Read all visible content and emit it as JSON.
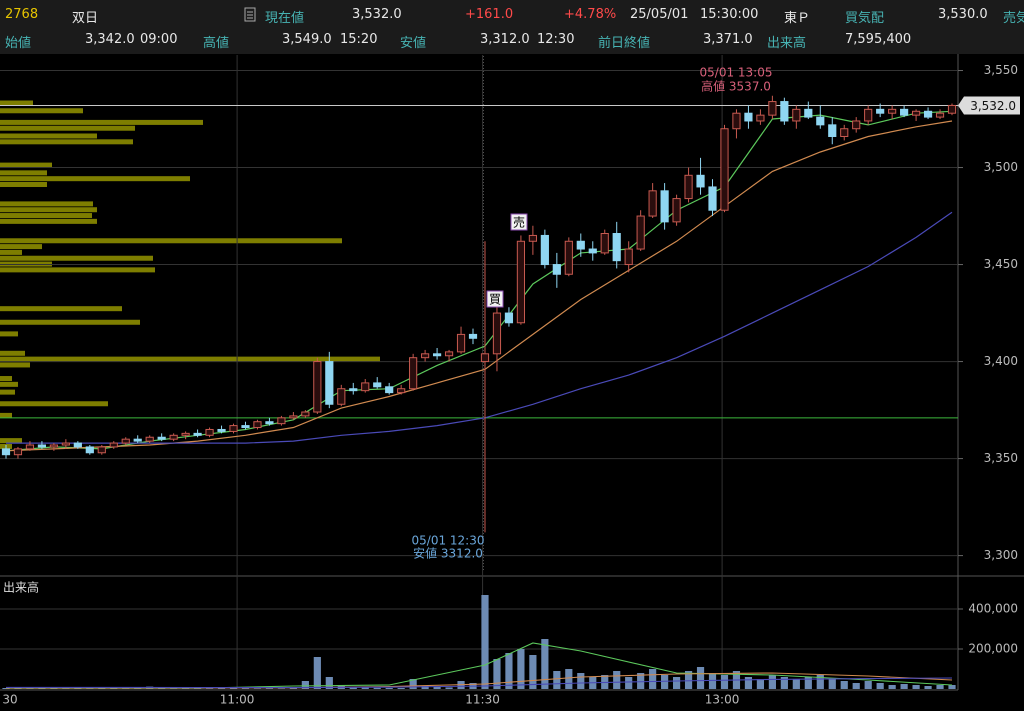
{
  "header": {
    "code": "2768",
    "name": "双日",
    "price_label": "現在値",
    "price": "3,532.0",
    "change": "+161.0",
    "change_pct": "+4.78%",
    "date": "25/05/01",
    "time": "15:30:00",
    "market": "東Ｐ",
    "bid_label": "買気配",
    "bid": "3,530.0",
    "ask_label": "売気",
    "open_label": "始値",
    "open": "3,342.0",
    "open_time": "09:00",
    "high_label": "高値",
    "high": "3,549.0",
    "high_time": "15:20",
    "low_label": "安値",
    "low": "3,312.0",
    "low_time": "12:30",
    "prev_close_label": "前日終値",
    "prev_close": "3,371.0",
    "volume_label": "出来高",
    "volume": "7,595,400"
  },
  "chart_data": [
    {
      "type": "candlestick",
      "up_color": "#c85a50",
      "down_color": "#8fd6f2",
      "x": [
        0,
        1,
        2,
        3,
        4,
        5,
        6,
        7,
        8,
        9,
        10,
        11,
        12,
        13,
        14,
        15,
        16,
        17,
        18,
        19,
        20,
        21,
        22,
        23,
        24,
        25,
        26,
        27,
        28,
        29,
        30,
        31,
        32,
        33,
        34,
        35,
        36,
        37,
        38,
        39,
        40,
        41,
        42,
        43,
        44,
        45,
        46,
        47,
        48,
        49,
        50,
        51,
        52,
        53,
        54,
        55,
        56,
        57,
        58,
        59,
        60,
        61,
        62,
        63,
        64,
        65,
        66,
        67,
        68,
        69,
        70,
        71,
        72,
        73,
        74,
        75,
        76,
        77,
        78,
        79
      ],
      "open": [
        3355,
        3352,
        3355,
        3357,
        3356,
        3357,
        3358,
        3356,
        3353,
        3356,
        3358,
        3360,
        3359,
        3361,
        3360,
        3362,
        3363,
        3362,
        3365,
        3364,
        3367,
        3366,
        3369,
        3368,
        3371,
        3372,
        3374,
        3400,
        3378,
        3386,
        3385,
        3389,
        3387,
        3384,
        3386,
        3402,
        3404,
        3403,
        3405,
        3414,
        3400,
        3404,
        3425,
        3420,
        3462,
        3465,
        3450,
        3445,
        3462,
        3458,
        3456,
        3466,
        3450,
        3458,
        3475,
        3488,
        3472,
        3484,
        3496,
        3490,
        3478,
        3520,
        3528,
        3524,
        3527,
        3534,
        3524,
        3530,
        3526,
        3522,
        3516,
        3520,
        3524,
        3530,
        3528,
        3530,
        3527,
        3529,
        3526,
        3528
      ],
      "high": [
        3357,
        3356,
        3359,
        3359,
        3358,
        3360,
        3359,
        3357,
        3357,
        3359,
        3361,
        3362,
        3362,
        3363,
        3363,
        3364,
        3365,
        3366,
        3367,
        3368,
        3369,
        3370,
        3371,
        3372,
        3374,
        3375,
        3402,
        3405,
        3388,
        3389,
        3391,
        3392,
        3389,
        3388,
        3404,
        3406,
        3407,
        3406,
        3418,
        3417,
        3462,
        3428,
        3428,
        3465,
        3470,
        3468,
        3456,
        3464,
        3466,
        3462,
        3468,
        3472,
        3462,
        3478,
        3492,
        3492,
        3486,
        3500,
        3505,
        3494,
        3522,
        3530,
        3532,
        3530,
        3537,
        3536,
        3532,
        3534,
        3532,
        3526,
        3522,
        3526,
        3532,
        3533,
        3532,
        3532,
        3530,
        3531,
        3530,
        3533
      ],
      "low": [
        3350,
        3350,
        3354,
        3355,
        3354,
        3355,
        3355,
        3352,
        3352,
        3355,
        3357,
        3358,
        3358,
        3359,
        3359,
        3360,
        3361,
        3361,
        3363,
        3363,
        3365,
        3365,
        3367,
        3367,
        3370,
        3371,
        3373,
        3376,
        3377,
        3383,
        3384,
        3386,
        3383,
        3383,
        3385,
        3400,
        3401,
        3400,
        3404,
        3409,
        3312,
        3395,
        3418,
        3419,
        3455,
        3448,
        3438,
        3444,
        3454,
        3452,
        3455,
        3448,
        3446,
        3457,
        3474,
        3468,
        3470,
        3482,
        3486,
        3475,
        3477,
        3515,
        3520,
        3522,
        3525,
        3522,
        3520,
        3525,
        3520,
        3512,
        3514,
        3518,
        3522,
        3526,
        3525,
        3526,
        3524,
        3525,
        3525,
        3527
      ],
      "close": [
        3352,
        3355,
        3357,
        3356,
        3357,
        3358,
        3356,
        3353,
        3356,
        3358,
        3360,
        3359,
        3361,
        3360,
        3362,
        3363,
        3362,
        3365,
        3364,
        3367,
        3366,
        3369,
        3368,
        3371,
        3372,
        3374,
        3400,
        3378,
        3386,
        3385,
        3389,
        3387,
        3384,
        3386,
        3402,
        3404,
        3403,
        3405,
        3414,
        3412,
        3404,
        3425,
        3420,
        3462,
        3465,
        3450,
        3445,
        3462,
        3458,
        3456,
        3466,
        3452,
        3458,
        3475,
        3488,
        3472,
        3484,
        3496,
        3490,
        3478,
        3520,
        3528,
        3524,
        3527,
        3534,
        3524,
        3530,
        3526,
        3522,
        3516,
        3520,
        3524,
        3530,
        3528,
        3530,
        3527,
        3529,
        3526,
        3528,
        3532
      ],
      "series": [
        {
          "color": "#5cc85c",
          "x": [
            0,
            4,
            8,
            12,
            16,
            20,
            24,
            28,
            32,
            36,
            40,
            44,
            48,
            52,
            56,
            60,
            64,
            68,
            72,
            76,
            79
          ],
          "values": [
            3354,
            3356,
            3355,
            3359,
            3362,
            3365,
            3370,
            3385,
            3386,
            3398,
            3408,
            3440,
            3456,
            3458,
            3478,
            3490,
            3525,
            3527,
            3522,
            3528,
            3529
          ]
        },
        {
          "color": "#d08a50",
          "x": [
            0,
            4,
            8,
            12,
            16,
            20,
            24,
            28,
            32,
            36,
            40,
            44,
            48,
            52,
            56,
            60,
            64,
            68,
            72,
            76,
            79
          ],
          "values": [
            3354,
            3355,
            3356,
            3357,
            3359,
            3362,
            3366,
            3376,
            3382,
            3389,
            3396,
            3414,
            3432,
            3447,
            3462,
            3480,
            3498,
            3508,
            3516,
            3521,
            3524
          ]
        },
        {
          "color": "#4a4ab8",
          "x": [
            0,
            4,
            8,
            12,
            16,
            20,
            24,
            28,
            32,
            36,
            40,
            44,
            48,
            52,
            56,
            60,
            64,
            68,
            72,
            76,
            79
          ],
          "values": [
            3358,
            3358,
            3358,
            3358,
            3358,
            3358,
            3359,
            3362,
            3364,
            3367,
            3371,
            3378,
            3386,
            3393,
            3402,
            3413,
            3425,
            3437,
            3449,
            3464,
            3477
          ]
        }
      ],
      "xlim": [
        -0.5,
        79.5
      ],
      "ylim": [
        3290,
        3558
      ],
      "xticks": [
        {
          "value": -0.3,
          "label": "30"
        },
        {
          "value": 19.3,
          "label": "11:00"
        },
        {
          "value": 39.8,
          "label": "11:30"
        },
        {
          "value": 59.8,
          "label": "13:00"
        }
      ],
      "yticks": [
        {
          "value": 3300,
          "label": "3,300"
        },
        {
          "value": 3350,
          "label": "3,350"
        },
        {
          "value": 3400,
          "label": "3,400"
        },
        {
          "value": 3450,
          "label": "3,450"
        },
        {
          "value": 3500,
          "label": "3,500"
        },
        {
          "value": 3550,
          "label": "3,550"
        }
      ],
      "grid": true,
      "current_price": {
        "value": 3532,
        "label": "3,532.0"
      },
      "prev_close_line": {
        "value": 3371,
        "color": "#3cb83c"
      },
      "volume_profile": {
        "color": "#8c8c00",
        "xlim": [
          0,
          958
        ],
        "prices": [
          3533,
          3529,
          3523,
          3520,
          3516,
          3513,
          3501,
          3497,
          3494,
          3491,
          3481,
          3478,
          3475,
          3472,
          3462,
          3459,
          3456,
          3453,
          3450,
          3447,
          3427,
          3420,
          3414,
          3404,
          3401,
          3398,
          3391,
          3388,
          3384,
          3378,
          3372,
          3359,
          3356
        ],
        "values": [
          33,
          83,
          203,
          135,
          97,
          133,
          52,
          47,
          190,
          47,
          93,
          97,
          92,
          97,
          342,
          42,
          22,
          153,
          52,
          155,
          122,
          140,
          18,
          25,
          380,
          30,
          12,
          18,
          15,
          108,
          12,
          22,
          12
        ]
      },
      "annotations": [
        {
          "text": "05/01 13:05",
          "color": "#d8607a"
        },
        {
          "text": "高値 3537.0",
          "color": "#d8607a"
        },
        {
          "text": "05/01 12:30",
          "color": "#6aa6da"
        },
        {
          "text": "安値 3312.0",
          "color": "#6aa6da"
        },
        {
          "text": "買",
          "color": "#000000"
        },
        {
          "text": "売",
          "color": "#000000"
        }
      ]
    },
    {
      "type": "bar",
      "title": "出来高",
      "color": "#6d8bb4",
      "values": [
        5000,
        3000,
        2000,
        4000,
        3000,
        2000,
        3000,
        2000,
        5000,
        3000,
        2000,
        4000,
        12000,
        3000,
        2000,
        3000,
        4000,
        2000,
        3000,
        5000,
        3000,
        2000,
        3000,
        2000,
        10000,
        40000,
        160000,
        60000,
        20000,
        10000,
        8000,
        6000,
        5000,
        5000,
        50000,
        15000,
        10000,
        8000,
        40000,
        30000,
        470000,
        150000,
        180000,
        200000,
        170000,
        250000,
        90000,
        100000,
        80000,
        60000,
        70000,
        90000,
        60000,
        80000,
        100000,
        70000,
        60000,
        90000,
        110000,
        80000,
        70000,
        90000,
        60000,
        50000,
        70000,
        60000,
        50000,
        60000,
        70000,
        50000,
        40000,
        30000,
        40000,
        30000,
        20000,
        25000,
        20000,
        15000,
        20000,
        20000
      ],
      "series": [
        {
          "color": "#5cc85c",
          "x": [
            0,
            8,
            16,
            24,
            32,
            40,
            44,
            48,
            56,
            64,
            72,
            79
          ],
          "values": [
            4000,
            4000,
            4000,
            15000,
            20000,
            120000,
            230000,
            190000,
            80000,
            70000,
            45000,
            20000
          ]
        },
        {
          "color": "#d08a50",
          "x": [
            0,
            8,
            16,
            24,
            32,
            40,
            48,
            56,
            64,
            72,
            79
          ],
          "values": [
            5000,
            5000,
            5000,
            6000,
            12000,
            25000,
            60000,
            75000,
            80000,
            65000,
            45000
          ]
        },
        {
          "color": "#4a4ab8",
          "x": [
            0,
            8,
            16,
            24,
            32,
            40,
            48,
            56,
            64,
            72,
            79
          ],
          "values": [
            8000,
            8000,
            7000,
            7000,
            9000,
            15000,
            30000,
            40000,
            48000,
            52000,
            55000
          ]
        }
      ],
      "ylim": [
        0,
        560000
      ],
      "yticks": [
        {
          "value": 200000,
          "label": "200,000"
        },
        {
          "value": 400000,
          "label": "400,000"
        }
      ],
      "grid": true
    }
  ]
}
